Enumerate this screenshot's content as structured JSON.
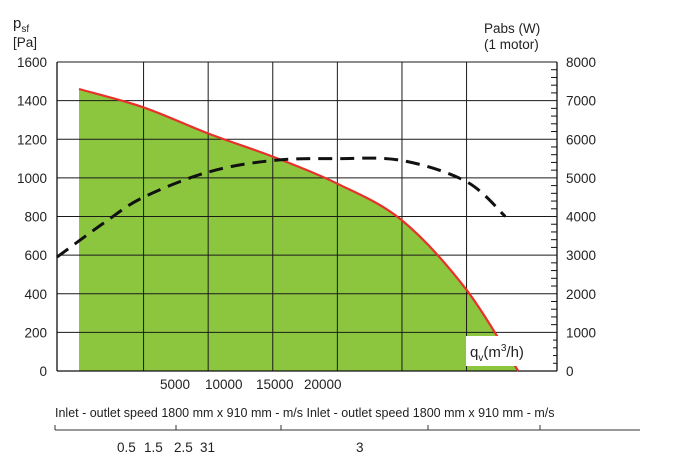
{
  "chart_data": {
    "type": "line",
    "y_left": {
      "label_symbol": "p",
      "label_sub": "sf",
      "label_unit": "[Pa]",
      "range": [
        0,
        1600
      ],
      "ticks": [
        "0",
        "200",
        "400",
        "600",
        "800",
        "1000",
        "1200",
        "1400",
        "1600"
      ]
    },
    "y_right": {
      "label_line1": "Pabs (W)",
      "label_line2": "(1 motor)",
      "range": [
        0,
        8000
      ],
      "ticks": [
        "0",
        "1000",
        "2000",
        "3000",
        "4000",
        "5000",
        "6000",
        "7000",
        "8000"
      ]
    },
    "x": {
      "range": [
        -1700,
        37000
      ],
      "ticks": [
        5000,
        10000,
        15000,
        20000
      ],
      "tick_labels": [
        "5000",
        "10000",
        "15000",
        "20000"
      ],
      "label_symbol": "q",
      "label_sub": "v",
      "label_unit_pre": "(m",
      "label_unit_sup": "3",
      "label_unit_post": "/h)"
    },
    "grid": true,
    "series": [
      {
        "kind": "pressure",
        "axis": "left",
        "fill_color": "#8cc63f",
        "line_color": "#e8312a",
        "x": [
          0,
          5000,
          10000,
          15000,
          20000,
          25000,
          30000,
          34000
        ],
        "y": [
          1460,
          1365,
          1230,
          1110,
          970,
          780,
          420,
          0
        ]
      },
      {
        "kind": "absorbed-power",
        "axis": "right",
        "line_color": "#111111",
        "dashed": true,
        "x": [
          -1700,
          2000,
          5000,
          10000,
          15000,
          20000,
          25000,
          30000,
          33000
        ],
        "y": [
          2950,
          3850,
          4500,
          5150,
          5450,
          5500,
          5450,
          4900,
          4000
        ]
      }
    ],
    "caption": "Inlet - outlet speed 1800 mm x 910 mm - m/s Inlet - outlet speed 1800 mm x 910 mm - m/s",
    "speed_scale": {
      "labels": [
        "0.5",
        "1.5",
        "2.5",
        "31",
        "3"
      ]
    }
  }
}
